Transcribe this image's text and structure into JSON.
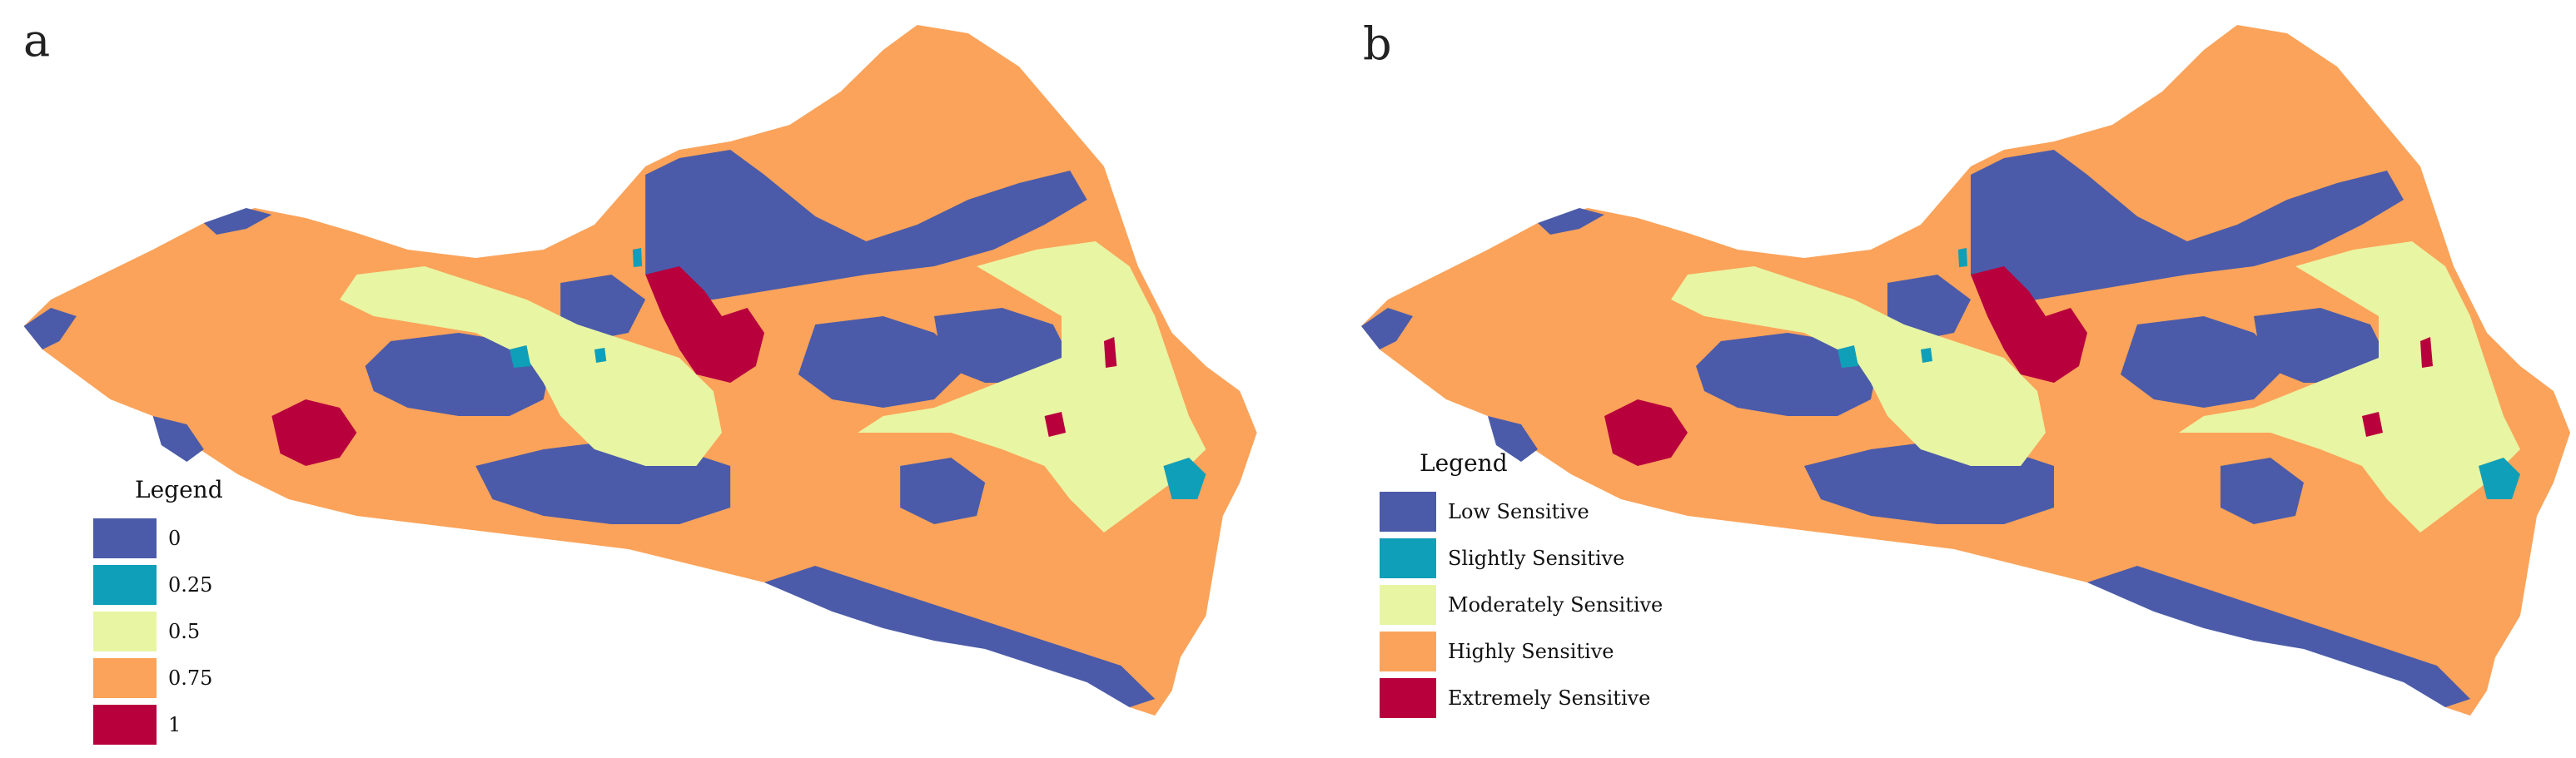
{
  "colors": {
    "low": "#4b5ba9",
    "slight": "#0f9fb8",
    "moderate": "#e8f5a3",
    "high": "#fba35a",
    "extreme": "#b8003d"
  },
  "panel_a": {
    "letter": "a",
    "legend": {
      "title": "Legend",
      "items": [
        {
          "label": "0",
          "color": "#4b5ba9"
        },
        {
          "label": "0.25",
          "color": "#0f9fb8"
        },
        {
          "label": "0.5",
          "color": "#e8f5a3"
        },
        {
          "label": "0.75",
          "color": "#fba35a"
        },
        {
          "label": "1",
          "color": "#b8003d"
        }
      ]
    }
  },
  "panel_b": {
    "letter": "b",
    "legend": {
      "title": "Legend",
      "items": [
        {
          "label": "Low Sensitive",
          "color": "#4b5ba9"
        },
        {
          "label": "Slightly Sensitive",
          "color": "#0f9fb8"
        },
        {
          "label": "Moderately Sensitive",
          "color": "#e8f5a3"
        },
        {
          "label": "Highly Sensitive",
          "color": "#fba35a"
        },
        {
          "label": "Extremely Sensitive",
          "color": "#b8003d"
        }
      ]
    }
  }
}
